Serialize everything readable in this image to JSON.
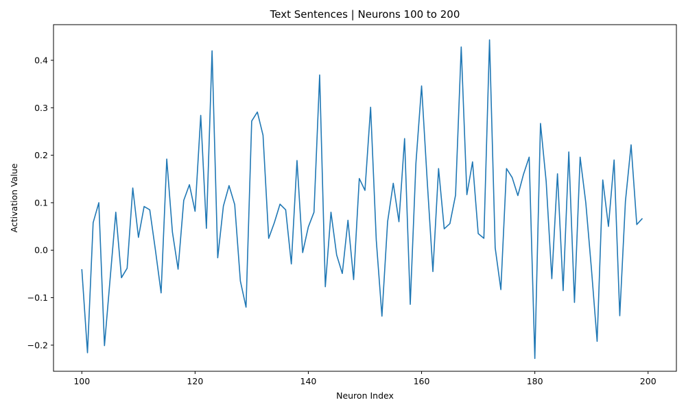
{
  "chart_data": {
    "type": "line",
    "title": "Text Sentences | Neurons 100 to 200",
    "xlabel": "Neuron Index",
    "ylabel": "Activation Value",
    "xlim": [
      95,
      205
    ],
    "ylim": [
      -0.255,
      0.475
    ],
    "xticks": [
      100,
      120,
      140,
      160,
      180,
      200
    ],
    "yticks": [
      -0.2,
      -0.1,
      0.0,
      0.1,
      0.2,
      0.3,
      0.4
    ],
    "grid": false,
    "colors": {
      "line": "#1f77b4"
    },
    "series": [
      {
        "x": [
          100,
          101,
          102,
          103,
          104,
          105,
          106,
          107,
          108,
          109,
          110,
          111,
          112,
          113,
          114,
          115,
          116,
          117,
          118,
          119,
          120,
          121,
          122,
          123,
          124,
          125,
          126,
          127,
          128,
          129,
          130,
          131,
          132,
          133,
          134,
          135,
          136,
          137,
          138,
          139,
          140,
          141,
          142,
          143,
          144,
          145,
          146,
          147,
          148,
          149,
          150,
          151,
          152,
          153,
          154,
          155,
          156,
          157,
          158,
          159,
          160,
          161,
          162,
          163,
          164,
          165,
          166,
          167,
          168,
          169,
          170,
          171,
          172,
          173,
          174,
          175,
          176,
          177,
          178,
          179,
          180,
          181,
          182,
          183,
          184,
          185,
          186,
          187,
          188,
          189,
          190,
          191,
          192,
          193,
          194,
          195,
          196,
          197,
          198,
          199
        ],
        "values": [
          -0.04,
          -0.216,
          0.058,
          0.1,
          -0.201,
          -0.06,
          0.08,
          -0.058,
          -0.038,
          0.131,
          0.027,
          0.092,
          0.085,
          0.0,
          -0.09,
          0.192,
          0.038,
          -0.04,
          0.105,
          0.138,
          0.082,
          0.284,
          0.046,
          0.42,
          -0.016,
          0.093,
          0.136,
          0.096,
          -0.065,
          -0.12,
          0.272,
          0.291,
          0.242,
          0.025,
          0.058,
          0.097,
          0.085,
          -0.029,
          0.189,
          -0.005,
          0.049,
          0.08,
          0.369,
          -0.077,
          0.08,
          -0.01,
          -0.049,
          0.063,
          -0.062,
          0.151,
          0.126,
          0.301,
          0.021,
          -0.139,
          0.06,
          0.141,
          0.06,
          0.235,
          -0.114,
          0.183,
          0.346,
          0.145,
          -0.045,
          0.172,
          0.045,
          0.056,
          0.116,
          0.428,
          0.117,
          0.186,
          0.035,
          0.025,
          0.443,
          0.005,
          -0.083,
          0.172,
          0.153,
          0.115,
          0.16,
          0.196,
          -0.228,
          0.267,
          0.145,
          -0.06,
          0.161,
          -0.085,
          0.207,
          -0.11,
          0.196,
          0.1,
          -0.04,
          -0.192,
          0.148,
          0.05,
          0.19,
          -0.138,
          0.103,
          0.222,
          0.054,
          0.067
        ]
      }
    ]
  }
}
